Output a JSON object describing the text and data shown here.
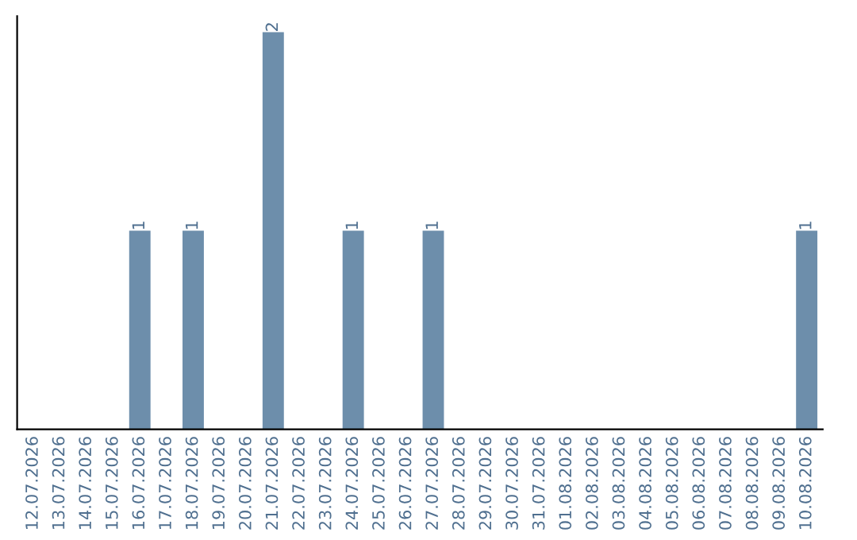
{
  "chart_data": {
    "type": "bar",
    "categories": [
      "12.07.2026",
      "13.07.2026",
      "14.07.2026",
      "15.07.2026",
      "16.07.2026",
      "17.07.2026",
      "18.07.2026",
      "19.07.2026",
      "20.07.2026",
      "21.07.2026",
      "22.07.2026",
      "23.07.2026",
      "24.07.2026",
      "25.07.2026",
      "26.07.2026",
      "27.07.2026",
      "28.07.2026",
      "29.07.2026",
      "30.07.2026",
      "31.07.2026",
      "01.08.2026",
      "02.08.2026",
      "03.08.2026",
      "04.08.2026",
      "05.08.2026",
      "06.08.2026",
      "07.08.2026",
      "08.08.2026",
      "09.08.2026",
      "10.08.2026"
    ],
    "values": [
      0,
      0,
      0,
      0,
      1,
      0,
      1,
      0,
      0,
      2,
      0,
      0,
      1,
      0,
      0,
      1,
      0,
      0,
      0,
      0,
      0,
      0,
      0,
      0,
      0,
      0,
      0,
      0,
      0,
      1
    ],
    "color": "#6d8eab",
    "value_labels": [
      null,
      null,
      null,
      null,
      "1",
      null,
      "1",
      null,
      null,
      "2",
      null,
      null,
      "1",
      null,
      null,
      "1",
      null,
      null,
      null,
      null,
      null,
      null,
      null,
      null,
      null,
      null,
      null,
      null,
      null,
      "1"
    ],
    "tick_labels": "x",
    "grid": false,
    "legend": false
  }
}
